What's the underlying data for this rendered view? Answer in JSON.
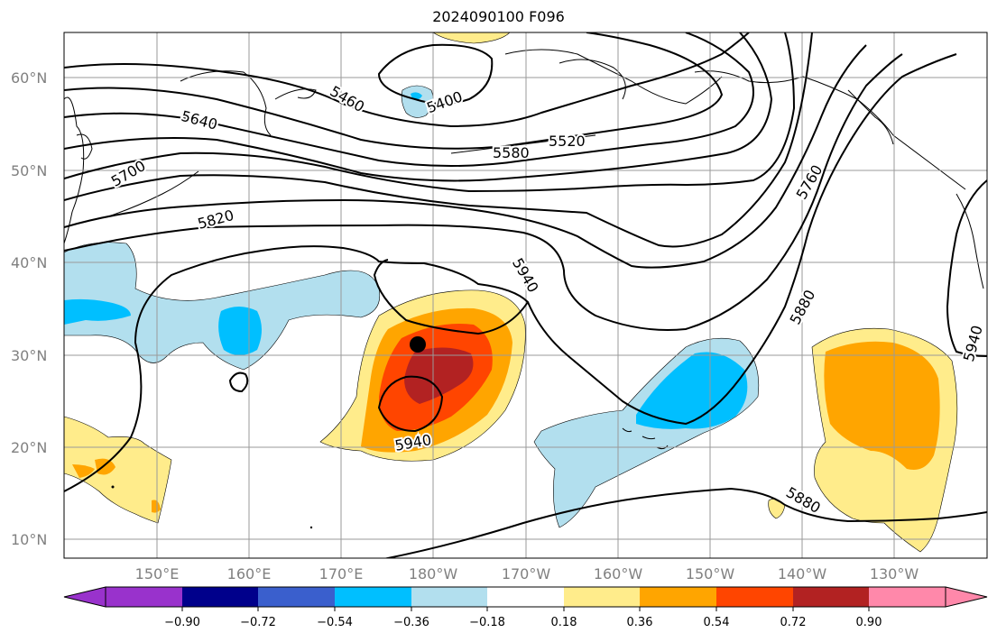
{
  "title": "2024090100 F096",
  "lat_labels": [
    "60°N",
    "50°N",
    "40°N",
    "30°N",
    "20°N",
    "10°N"
  ],
  "lon_labels": [
    "150°E",
    "160°E",
    "170°E",
    "180°W",
    "170°W",
    "160°W",
    "150°W",
    "140°W",
    "130°W"
  ],
  "contour_labels": [
    "5400",
    "5460",
    "5520",
    "5580",
    "5640",
    "5700",
    "5760",
    "5820",
    "5880",
    "5880",
    "5940",
    "5940",
    "5940"
  ],
  "colorbar": {
    "ticks": [
      "−0.90",
      "−0.72",
      "−0.54",
      "−0.36",
      "−0.18",
      "0.18",
      "0.36",
      "0.54",
      "0.72",
      "0.90"
    ],
    "colors": [
      "#9932cc",
      "#00008b",
      "#3a5fcd",
      "#00bfff",
      "#b2dfee",
      "#ffffff",
      "#ffec8b",
      "#ffa500",
      "#ff4500",
      "#b22222",
      "#ff88aa"
    ]
  },
  "colors": {
    "light_blue": "#b2dfee",
    "blue": "#00bfff",
    "yellow": "#ffec8b",
    "orange": "#ffa500",
    "red_orange": "#ff4500",
    "dark_red": "#b22222"
  }
}
